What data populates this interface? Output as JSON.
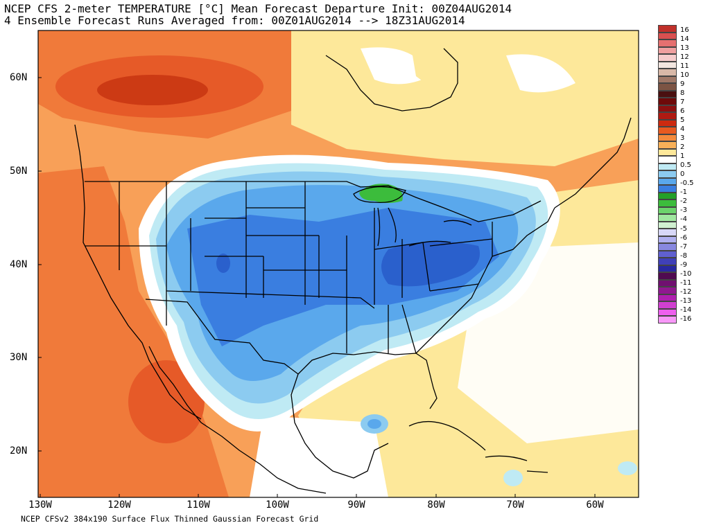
{
  "title": {
    "line1": "NCEP CFS 2-meter TEMPERATURE [°C] Mean Forecast Departure Init: 00Z04AUG2014",
    "line2": "4 Ensemble Forecast Runs Averaged from: 00Z01AUG2014 --> 18Z31AUG2014"
  },
  "footer": "NCEP CFSv2 384x190 Surface Flux Thinned Gaussian Forecast Grid",
  "axes": {
    "lat_labels": [
      "60N",
      "50N",
      "40N",
      "30N",
      "20N"
    ],
    "lon_labels": [
      "130W",
      "120W",
      "110W",
      "100W",
      "90W",
      "80W",
      "70W",
      "60W"
    ]
  },
  "legend": {
    "labels": [
      "16",
      "14",
      "13",
      "12",
      "11",
      "10",
      "9",
      "8",
      "7",
      "6",
      "5",
      "4",
      "3",
      "2",
      "1",
      "0.5",
      "0",
      "-0.5",
      "-1",
      "-2",
      "-3",
      "-4",
      "-5",
      "-6",
      "-7",
      "-8",
      "-9",
      "-10",
      "-11",
      "-12",
      "-13",
      "-14",
      "-16"
    ],
    "colors": [
      "#c0302a",
      "#d95050",
      "#e57070",
      "#f0a0a0",
      "#f6cccc",
      "#f2e6e0",
      "#d8b8a8",
      "#a07868",
      "#7c5444",
      "#4a1010",
      "#6e0a0a",
      "#8c1010",
      "#b01a12",
      "#cc2a10",
      "#e85a20",
      "#f48a3c",
      "#f8b058",
      "#fde89a",
      "#ffffff",
      "#bfeaf4",
      "#8ccbf0",
      "#5aa8ec",
      "#3a7ee0",
      "#24a028",
      "#3cbc3c",
      "#6cd46c",
      "#a0e8a0",
      "#d0f0d0",
      "#d8d8f8",
      "#b0b0f0",
      "#8888e0",
      "#6060d0",
      "#4040b8",
      "#2828a0",
      "#500a50",
      "#701070",
      "#901890",
      "#b020b0",
      "#d040d0",
      "#ee60ee",
      "#f898f8"
    ]
  },
  "colors": {
    "warm_1": "#f8a058",
    "warm_2": "#f07a3a",
    "warm_3": "#e65a28",
    "warm_4": "#cc3a14",
    "neutral_warm": "#fde89a",
    "cool_1": "#bfeaf4",
    "cool_2": "#8ccbf0",
    "cool_3": "#5aa8ec",
    "cool_4": "#3a7ee0",
    "cool_5": "#2a60cc",
    "green": "#3cbc3c"
  }
}
